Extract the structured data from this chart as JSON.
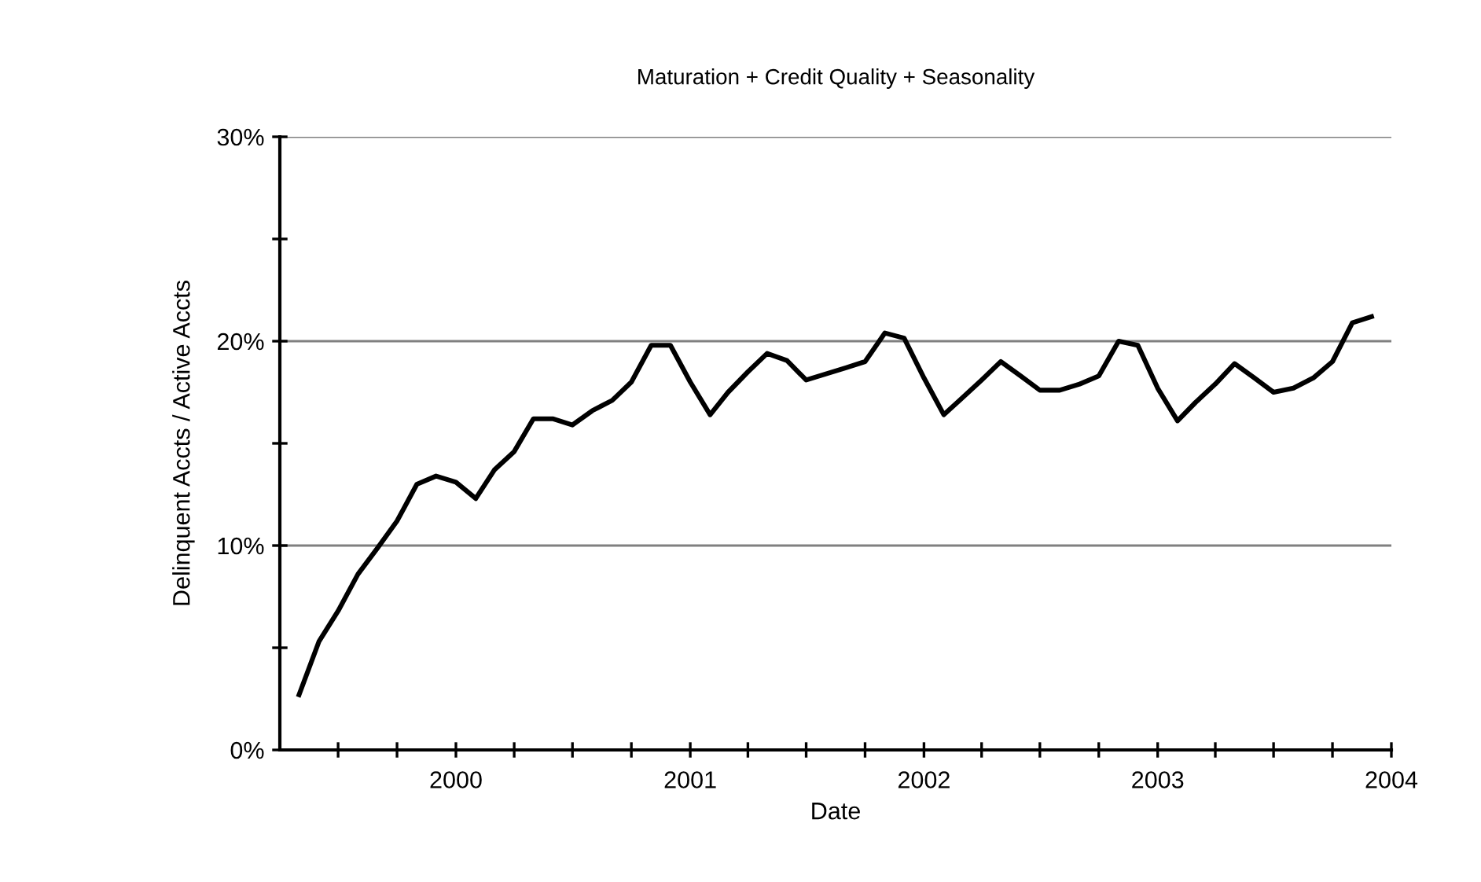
{
  "chart_data": {
    "type": "line",
    "title": "Maturation + Credit Quality + Seasonality",
    "xlabel": "Date",
    "ylabel": "Delinquent Accts / Active Accts",
    "x": [
      "1999-05",
      "1999-06",
      "1999-07",
      "1999-08",
      "1999-09",
      "1999-10",
      "1999-11",
      "1999-12",
      "2000-01",
      "2000-02",
      "2000-03",
      "2000-04",
      "2000-05",
      "2000-06",
      "2000-07",
      "2000-08",
      "2000-09",
      "2000-10",
      "2000-11",
      "2000-12",
      "2001-01",
      "2001-02",
      "2001-03",
      "2001-04",
      "2001-05",
      "2001-06",
      "2001-07",
      "2001-08",
      "2001-09",
      "2001-10",
      "2001-11",
      "2001-12",
      "2002-01",
      "2002-02",
      "2002-03",
      "2002-04",
      "2002-05",
      "2002-06",
      "2002-07",
      "2002-08",
      "2002-09",
      "2002-10",
      "2002-11",
      "2002-12",
      "2003-01",
      "2003-02",
      "2003-03",
      "2003-04",
      "2003-05",
      "2003-06",
      "2003-07",
      "2003-08",
      "2003-09",
      "2003-10",
      "2003-11",
      "2003-12"
    ],
    "series": [
      {
        "color": "#000000",
        "values": [
          2.7,
          5.3,
          6.8,
          8.6,
          9.9,
          11.2,
          13.0,
          13.4,
          13.1,
          12.3,
          13.7,
          14.6,
          16.2,
          16.2,
          15.9,
          16.6,
          17.1,
          18.0,
          19.8,
          19.8,
          18.0,
          16.4,
          17.5,
          18.5,
          19.4,
          19.05,
          18.1,
          18.4,
          18.7,
          19.0,
          20.4,
          20.15,
          18.2,
          16.4,
          17.2,
          18.1,
          19.0,
          18.3,
          17.6,
          17.6,
          17.9,
          18.3,
          20.0,
          19.8,
          17.7,
          16.1,
          17.0,
          17.9,
          18.9,
          18.2,
          17.5,
          17.7,
          18.2,
          19.0,
          20.9,
          21.2
        ]
      }
    ],
    "xlim": [
      "1999-04-01",
      "2004-01-01"
    ],
    "xticks": [
      {
        "value": "1999-07-01",
        "label": null
      },
      {
        "value": "1999-10-01",
        "label": null
      },
      {
        "value": "2000-01-01",
        "label": "2000"
      },
      {
        "value": "2000-04-01",
        "label": null
      },
      {
        "value": "2000-07-01",
        "label": null
      },
      {
        "value": "2000-10-01",
        "label": null
      },
      {
        "value": "2001-01-01",
        "label": "2001"
      },
      {
        "value": "2001-04-01",
        "label": null
      },
      {
        "value": "2001-07-01",
        "label": null
      },
      {
        "value": "2001-10-01",
        "label": null
      },
      {
        "value": "2002-01-01",
        "label": "2002"
      },
      {
        "value": "2002-04-01",
        "label": null
      },
      {
        "value": "2002-07-01",
        "label": null
      },
      {
        "value": "2002-10-01",
        "label": null
      },
      {
        "value": "2003-01-01",
        "label": "2003"
      },
      {
        "value": "2003-04-01",
        "label": null
      },
      {
        "value": "2003-07-01",
        "label": null
      },
      {
        "value": "2003-10-01",
        "label": null
      },
      {
        "value": "2004-01-01",
        "label": "2004"
      }
    ],
    "ylim": [
      0,
      30
    ],
    "yticks": [
      {
        "value": 0,
        "label": "0%"
      },
      {
        "value": 5,
        "label": null
      },
      {
        "value": 10,
        "label": "10%"
      },
      {
        "value": 15,
        "label": null
      },
      {
        "value": 20,
        "label": "20%"
      },
      {
        "value": 25,
        "label": null
      },
      {
        "value": 30,
        "label": "30%"
      }
    ],
    "grid": "y",
    "marker": "none",
    "line_style": "solid"
  }
}
